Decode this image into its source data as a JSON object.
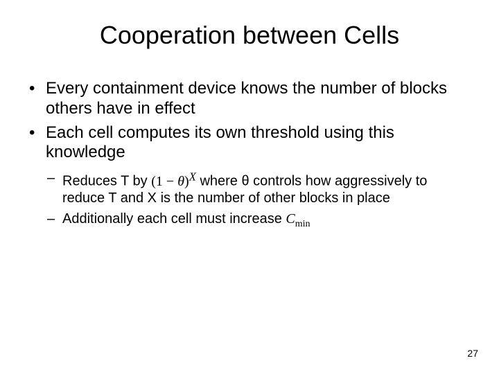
{
  "slide": {
    "title": "Cooperation between Cells",
    "bullets": [
      {
        "text": "Every containment device knows the number of blocks others have in effect"
      },
      {
        "text": "Each cell computes its own threshold using this knowledge"
      }
    ],
    "subbullets": [
      {
        "prefix": "Reduces T by ",
        "formula_html": "(1 − <i>θ</i>)<sup><i>X</i></sup>",
        "suffix": " where θ controls how aggressively to reduce T and X is the number of other blocks in place"
      },
      {
        "prefix": "Additionally each cell must increase ",
        "formula_html": "<i>C</i><sub>min</sub>",
        "suffix": ""
      }
    ],
    "page_number": "27",
    "styling": {
      "background_color": "#ffffff",
      "text_color": "#000000",
      "title_fontsize": 36,
      "bullet_fontsize": 24,
      "subbullet_fontsize": 20,
      "page_number_fontsize": 14,
      "font_family": "Arial",
      "formula_font_family": "Times New Roman",
      "slide_width": 720,
      "slide_height": 540
    }
  }
}
